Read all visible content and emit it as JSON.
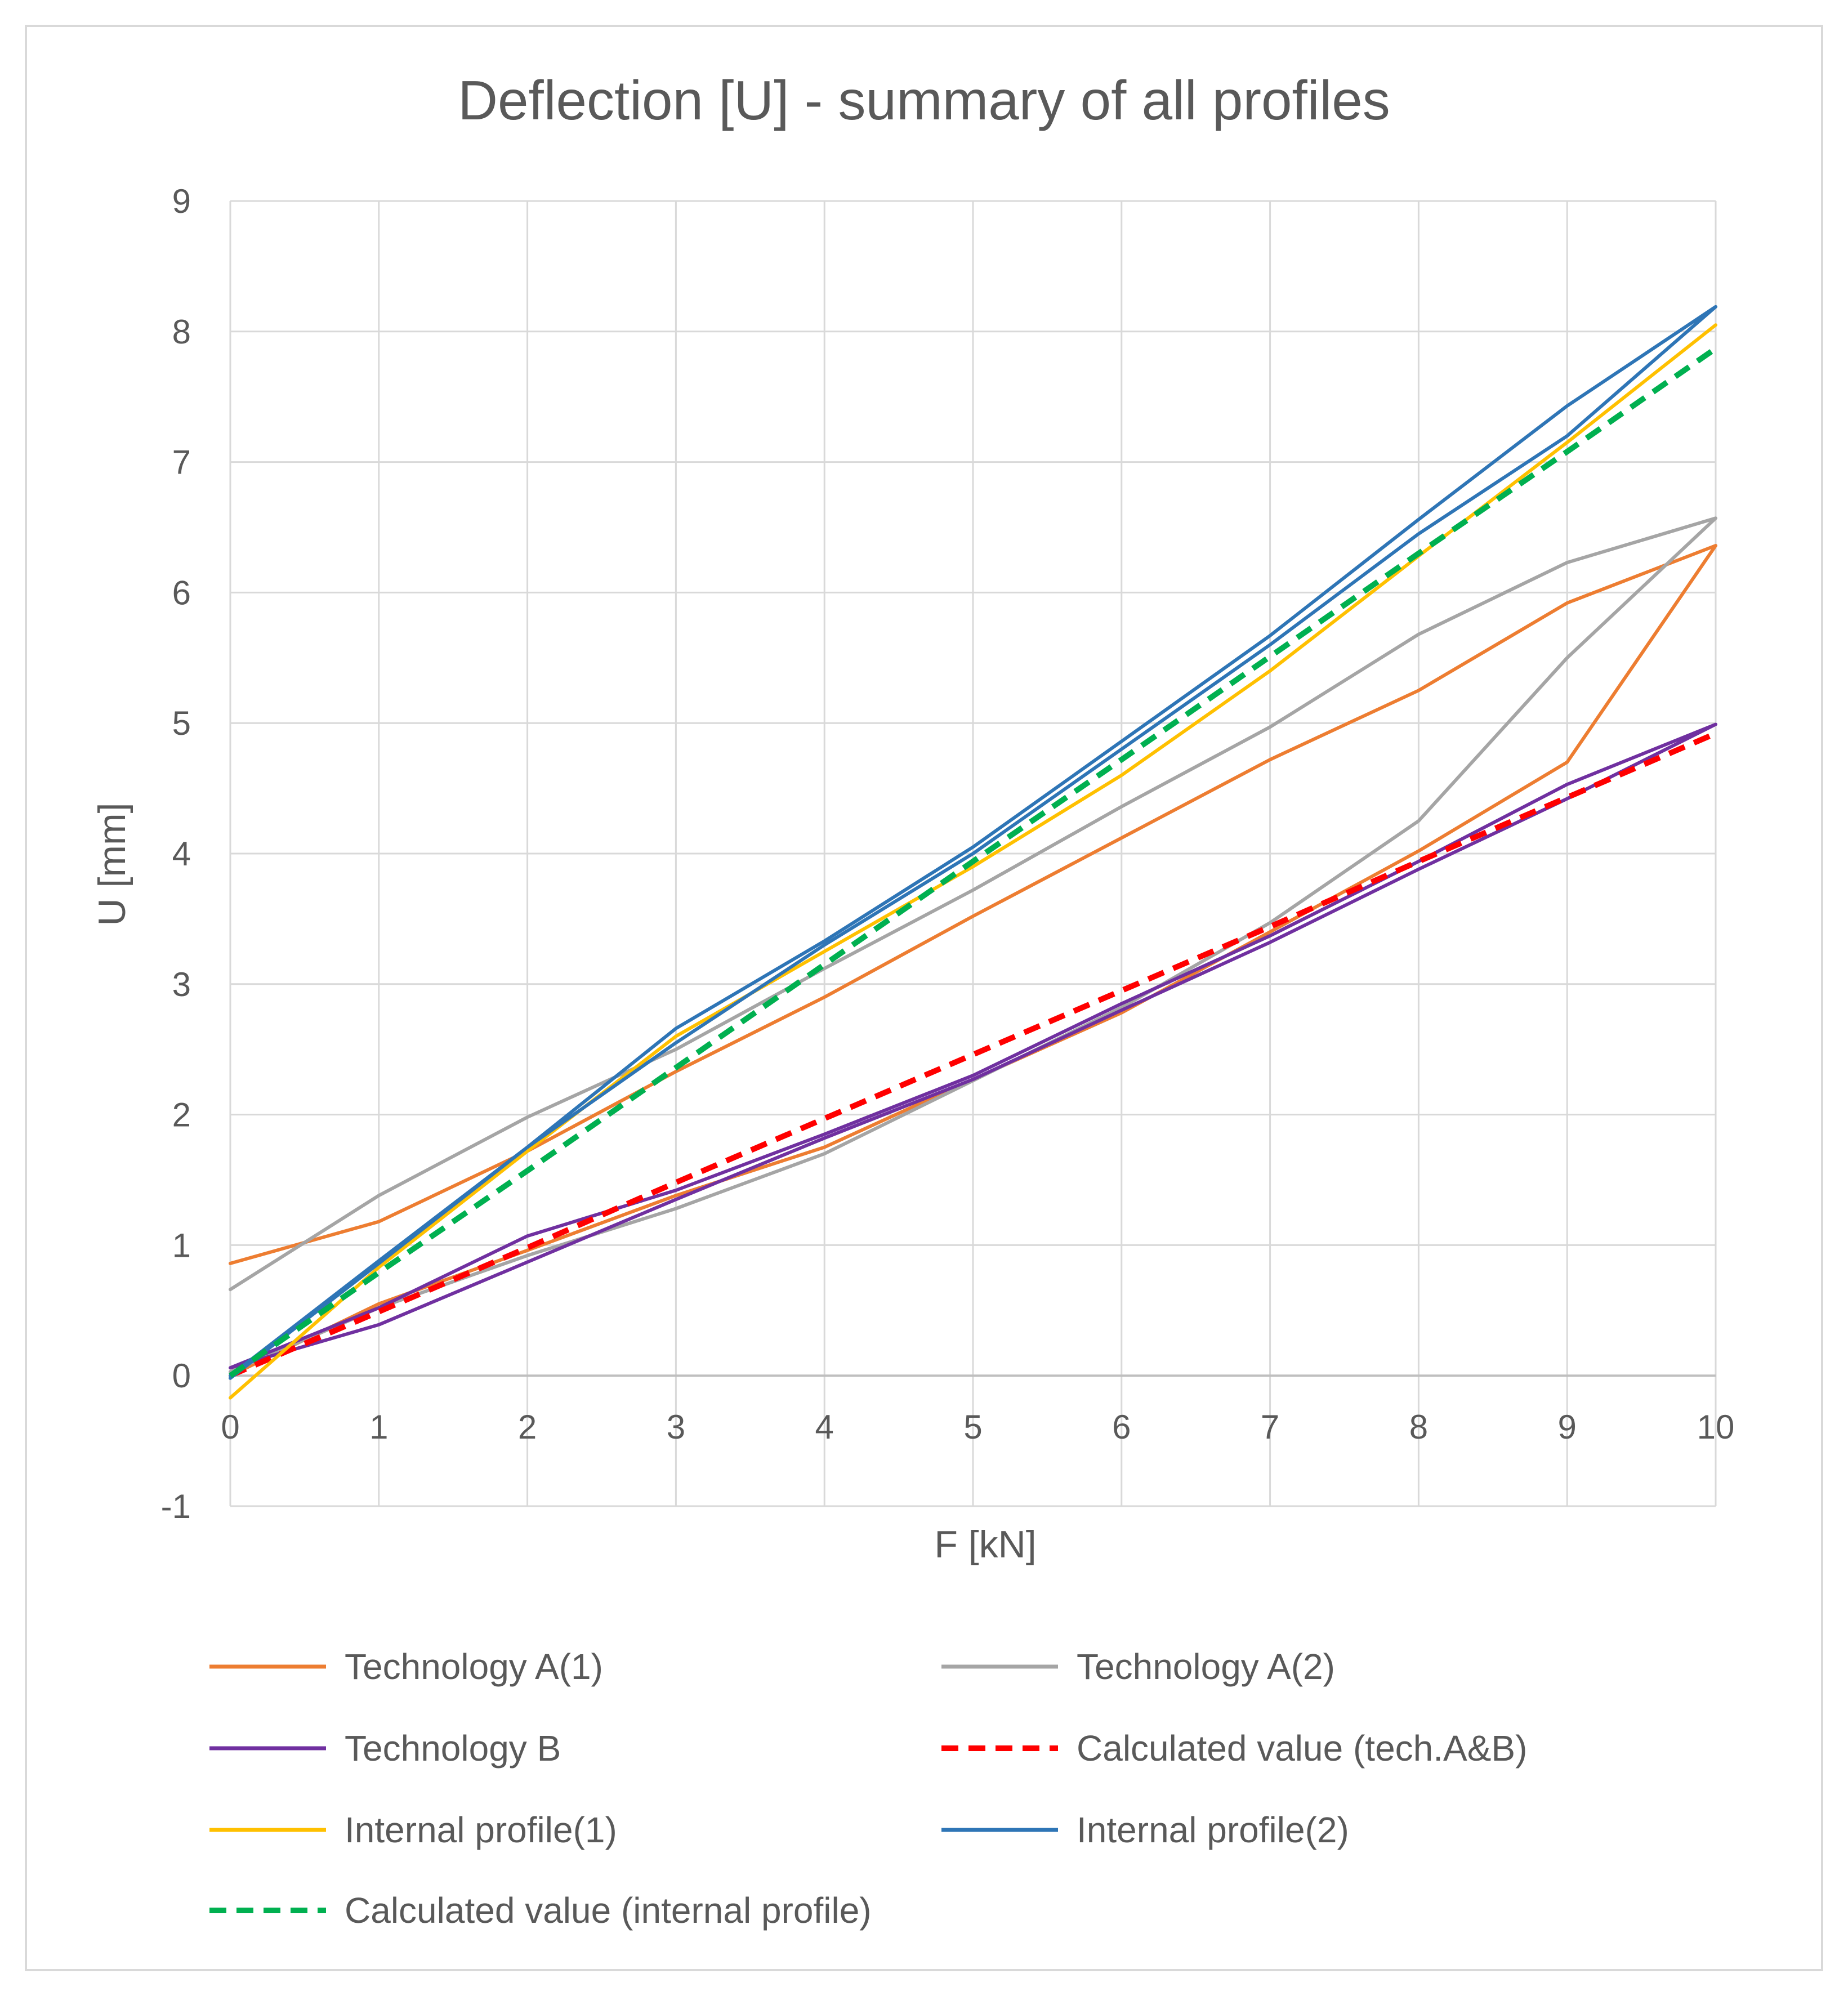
{
  "chart_data": {
    "type": "line",
    "title": "Deflection [U] - summary of all profiles",
    "xlabel": "F [kN]",
    "ylabel": "U [mm]",
    "xlim": [
      0,
      10
    ],
    "ylim": [
      -1,
      9
    ],
    "x_ticks": [
      "0",
      "1",
      "2",
      "3",
      "4",
      "5",
      "6",
      "7",
      "8",
      "9",
      "10"
    ],
    "y_ticks": [
      "-1",
      "0",
      "1",
      "2",
      "3",
      "4",
      "5",
      "6",
      "7",
      "8",
      "9"
    ],
    "grid": true,
    "legend_position": "bottom",
    "series": [
      {
        "name": "Technology A(1)",
        "color": "#ed7d31",
        "dash": false,
        "x": [
          0,
          1,
          2,
          3,
          4,
          5,
          6,
          7,
          8,
          9,
          10,
          9,
          8,
          7,
          6,
          5,
          4,
          3,
          2,
          1,
          0
        ],
        "values": [
          0.86,
          1.18,
          1.72,
          2.33,
          2.9,
          3.52,
          4.12,
          4.72,
          5.25,
          5.92,
          6.36,
          4.7,
          4.02,
          3.4,
          2.78,
          2.27,
          1.75,
          1.38,
          0.96,
          0.55,
          0.0
        ]
      },
      {
        "name": "Technology A(2)",
        "color": "#a5a5a5",
        "dash": false,
        "x": [
          0,
          1,
          2,
          3,
          4,
          5,
          6,
          7,
          8,
          9,
          10,
          9,
          8,
          7,
          6,
          5,
          4,
          3,
          2,
          1,
          0
        ],
        "values": [
          0.66,
          1.38,
          1.98,
          2.5,
          3.12,
          3.72,
          4.36,
          4.97,
          5.68,
          6.23,
          6.57,
          5.5,
          4.25,
          3.47,
          2.82,
          2.26,
          1.7,
          1.28,
          0.92,
          0.52,
          0.03
        ]
      },
      {
        "name": "Technology B",
        "color": "#7030a0",
        "dash": false,
        "x": [
          0,
          1,
          2,
          3,
          4,
          5,
          6,
          7,
          8,
          9,
          10,
          9,
          8,
          7,
          6,
          5,
          4,
          3,
          2,
          1,
          0
        ],
        "values": [
          0.06,
          0.52,
          1.07,
          1.42,
          1.85,
          2.3,
          2.85,
          3.37,
          3.94,
          4.53,
          4.99,
          4.42,
          3.88,
          3.32,
          2.8,
          2.27,
          1.82,
          1.35,
          0.87,
          0.39,
          0.06
        ]
      },
      {
        "name": "Calculated value (tech.A&B)",
        "color": "#ff0000",
        "dash": true,
        "x": [
          0,
          1,
          2,
          3,
          4,
          5,
          6,
          7,
          8,
          9,
          10
        ],
        "values": [
          0.0,
          0.49,
          0.98,
          1.48,
          1.97,
          2.46,
          2.95,
          3.44,
          3.94,
          4.43,
          4.92
        ]
      },
      {
        "name": "Internal profile(1)",
        "color": "#ffc000",
        "dash": false,
        "x": [
          0,
          1,
          2,
          3,
          4,
          5,
          6,
          7,
          8,
          9,
          10
        ],
        "values": [
          -0.17,
          0.83,
          1.72,
          2.6,
          3.25,
          3.9,
          4.6,
          5.4,
          6.28,
          7.15,
          8.05
        ]
      },
      {
        "name": "Internal profile(2)",
        "color": "#2e75b6",
        "dash": false,
        "x": [
          0,
          1,
          2,
          3,
          4,
          5,
          6,
          7,
          8,
          9,
          10,
          9,
          8,
          7,
          6,
          5,
          4,
          3,
          2,
          1,
          0
        ],
        "values": [
          0.0,
          0.88,
          1.75,
          2.66,
          3.33,
          4.05,
          4.86,
          5.67,
          6.56,
          7.43,
          8.19,
          7.2,
          6.45,
          5.6,
          4.8,
          4.0,
          3.3,
          2.55,
          1.75,
          0.86,
          -0.02
        ]
      },
      {
        "name": "Calculated value (internal profile)",
        "color": "#00b050",
        "dash": true,
        "x": [
          0,
          1,
          2,
          3,
          4,
          5,
          6,
          7,
          8,
          9,
          10
        ],
        "values": [
          0.0,
          0.79,
          1.57,
          2.36,
          3.15,
          3.94,
          4.72,
          5.51,
          6.3,
          7.08,
          7.87
        ]
      }
    ]
  }
}
